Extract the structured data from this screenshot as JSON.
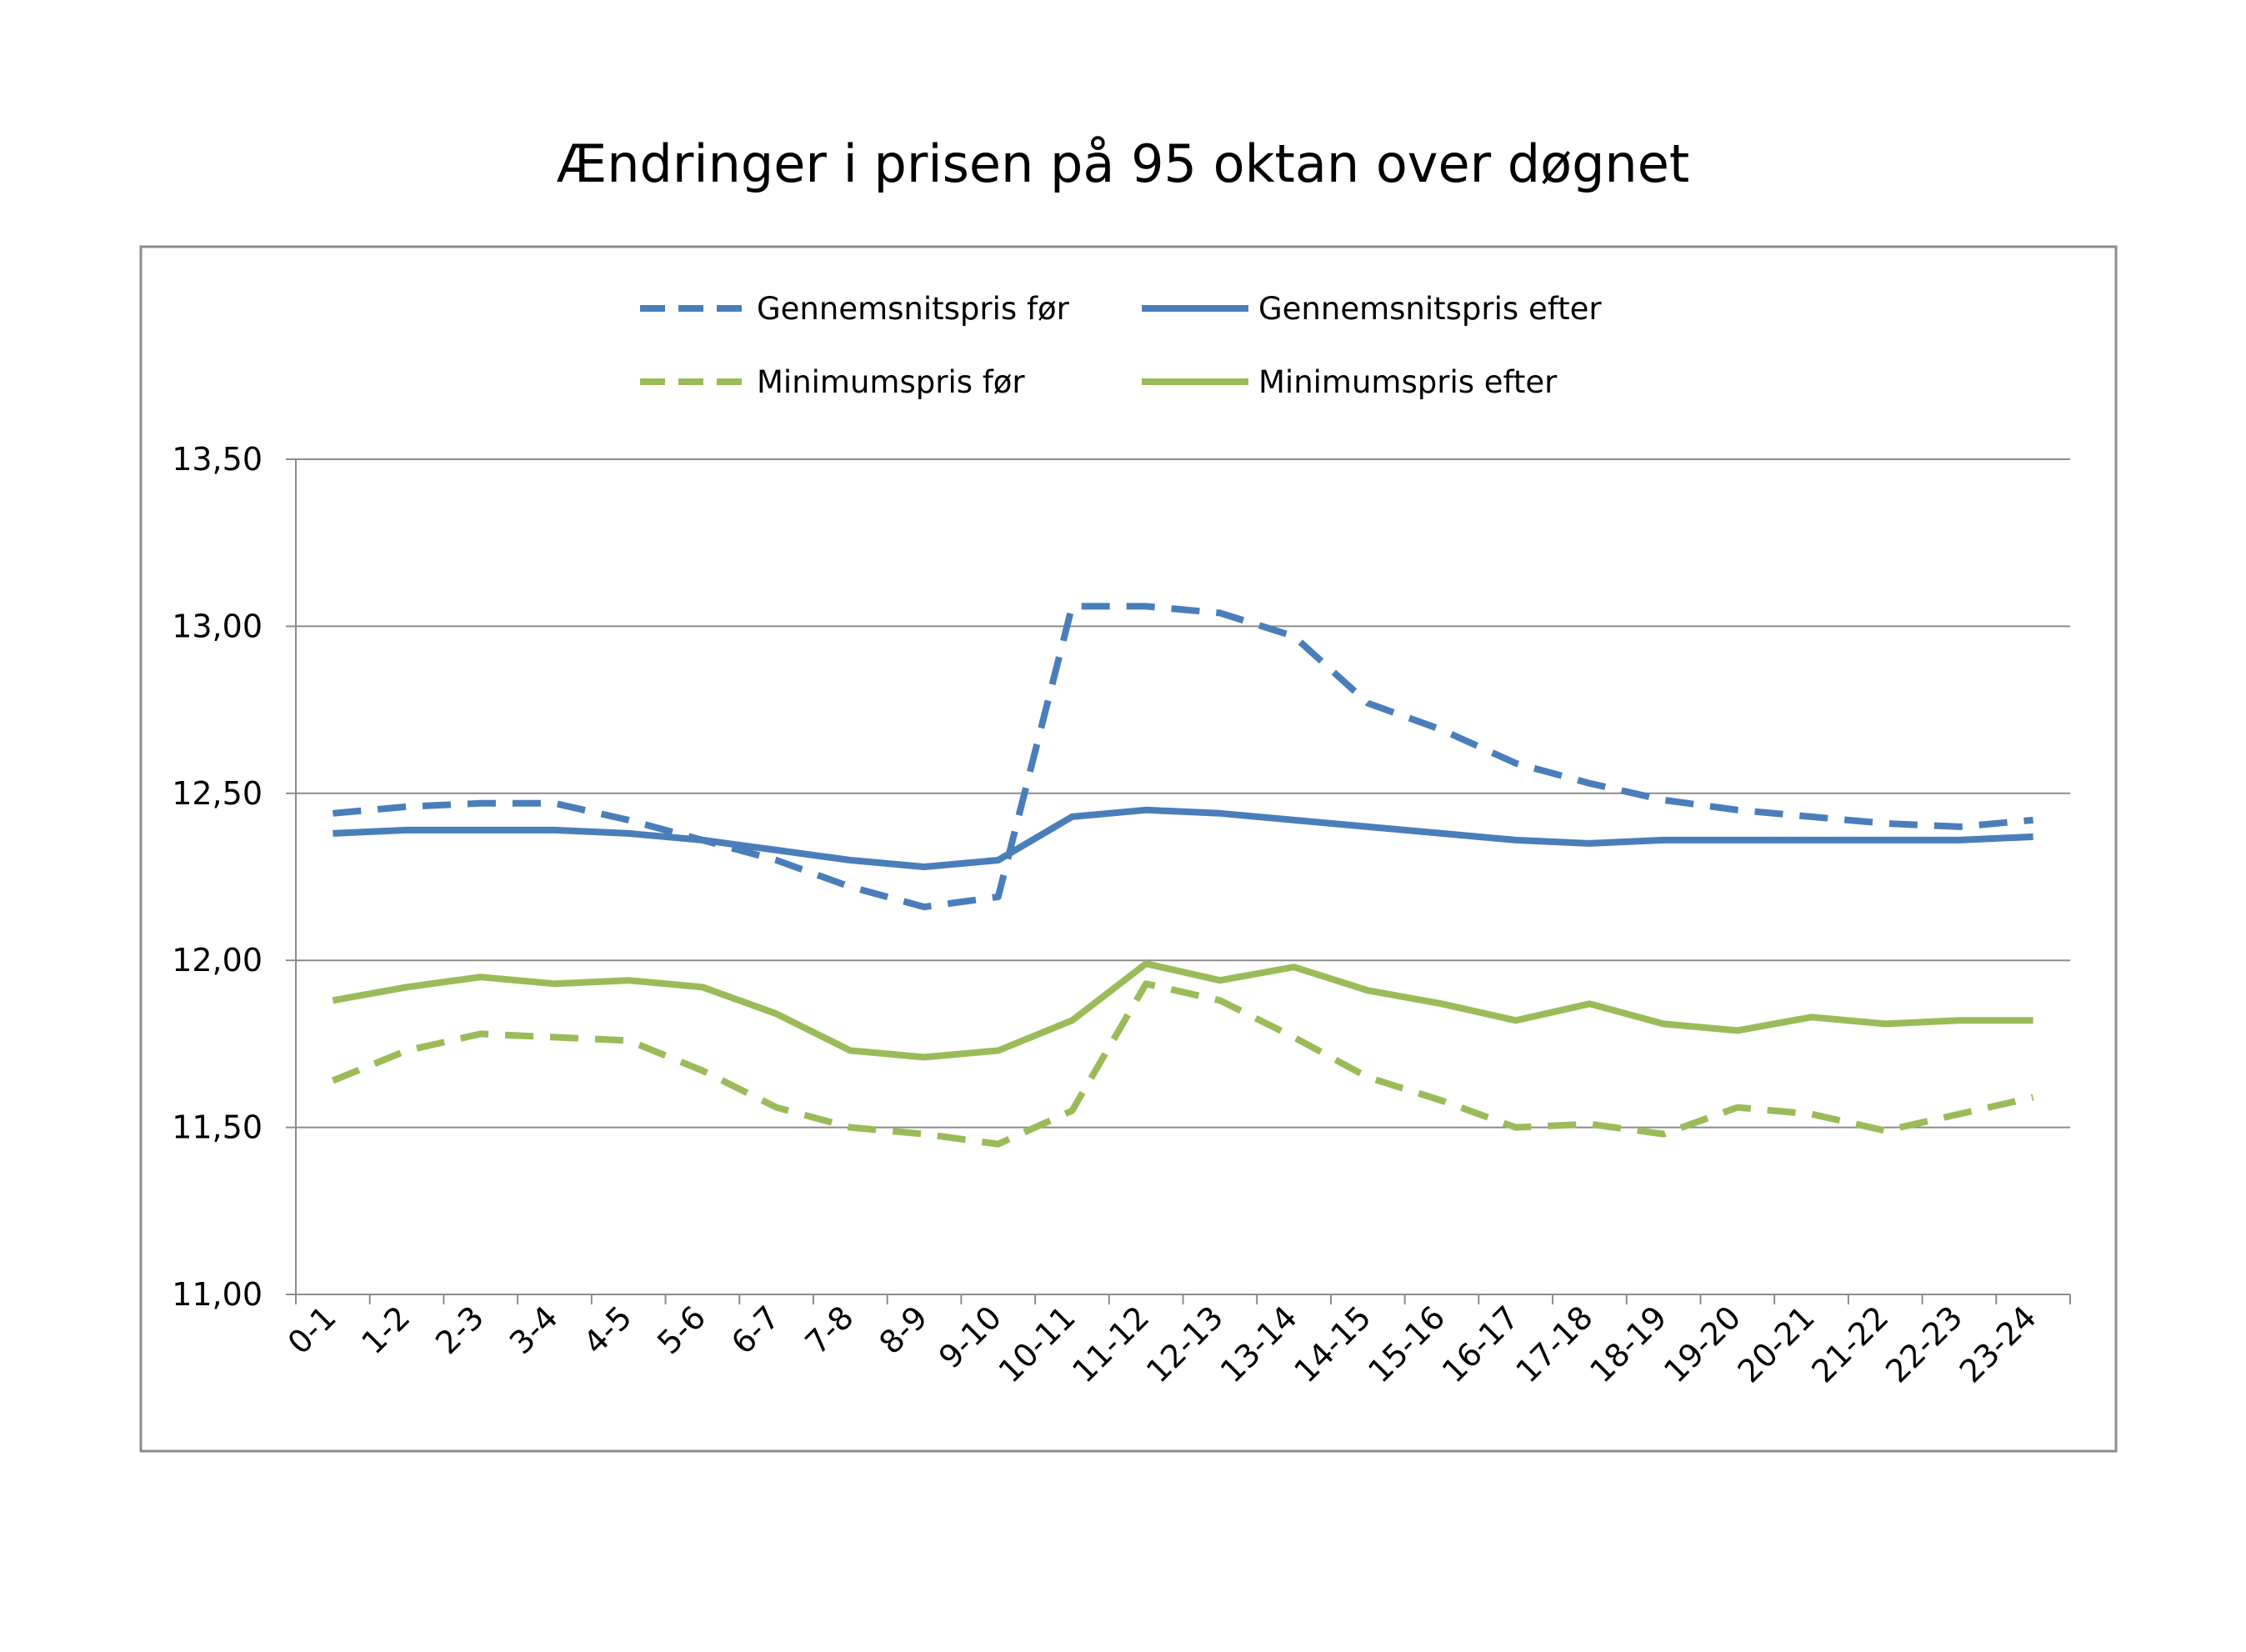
{
  "chart_data": {
    "type": "line",
    "title": "Ændringer i prisen på 95 oktan over døgnet",
    "xlabel": "",
    "ylabel": "",
    "ylim": [
      11.0,
      13.5
    ],
    "yticks": [
      "11,00",
      "11,50",
      "12,00",
      "12,50",
      "13,00",
      "13,50"
    ],
    "grid": true,
    "legend_position": "top",
    "categories": [
      "0-1",
      "1-2",
      "2-3",
      "3-4",
      "4-5",
      "5-6",
      "6-7",
      "7-8",
      "8-9",
      "9-10",
      "10-11",
      "11-12",
      "12-13",
      "13-14",
      "14-15",
      "15-16",
      "16-17",
      "17-18",
      "18-19",
      "19-20",
      "20-21",
      "21-22",
      "22-23",
      "23-24"
    ],
    "series": [
      {
        "name": "Gennemsnitspris før",
        "color": "#4a7ebb",
        "style": "dashed",
        "values": [
          12.44,
          12.46,
          12.47,
          12.47,
          12.42,
          12.36,
          12.3,
          12.22,
          12.16,
          12.19,
          13.06,
          13.06,
          13.04,
          12.97,
          12.77,
          12.69,
          12.59,
          12.53,
          12.48,
          12.45,
          12.43,
          12.41,
          12.4,
          12.42
        ]
      },
      {
        "name": "Gennemsnitspris efter",
        "color": "#4a7ebb",
        "style": "solid",
        "values": [
          12.38,
          12.39,
          12.39,
          12.39,
          12.38,
          12.36,
          12.33,
          12.3,
          12.28,
          12.3,
          12.43,
          12.45,
          12.44,
          12.42,
          12.4,
          12.38,
          12.36,
          12.35,
          12.36,
          12.36,
          12.36,
          12.36,
          12.36,
          12.37
        ]
      },
      {
        "name": "Minimumspris før",
        "color": "#9bbb59",
        "style": "dashed",
        "values": [
          11.64,
          11.73,
          11.78,
          11.77,
          11.76,
          11.67,
          11.56,
          11.5,
          11.48,
          11.45,
          11.55,
          11.93,
          11.88,
          11.77,
          11.65,
          11.58,
          11.5,
          11.51,
          11.48,
          11.56,
          11.54,
          11.49,
          11.54,
          11.59
        ]
      },
      {
        "name": "Minimumspris efter",
        "color": "#9bbb59",
        "style": "solid",
        "values": [
          11.88,
          11.92,
          11.95,
          11.93,
          11.94,
          11.92,
          11.84,
          11.73,
          11.71,
          11.73,
          11.82,
          11.99,
          11.94,
          11.98,
          11.91,
          11.87,
          11.82,
          11.87,
          11.81,
          11.79,
          11.83,
          11.81,
          11.82,
          11.82
        ]
      }
    ]
  }
}
